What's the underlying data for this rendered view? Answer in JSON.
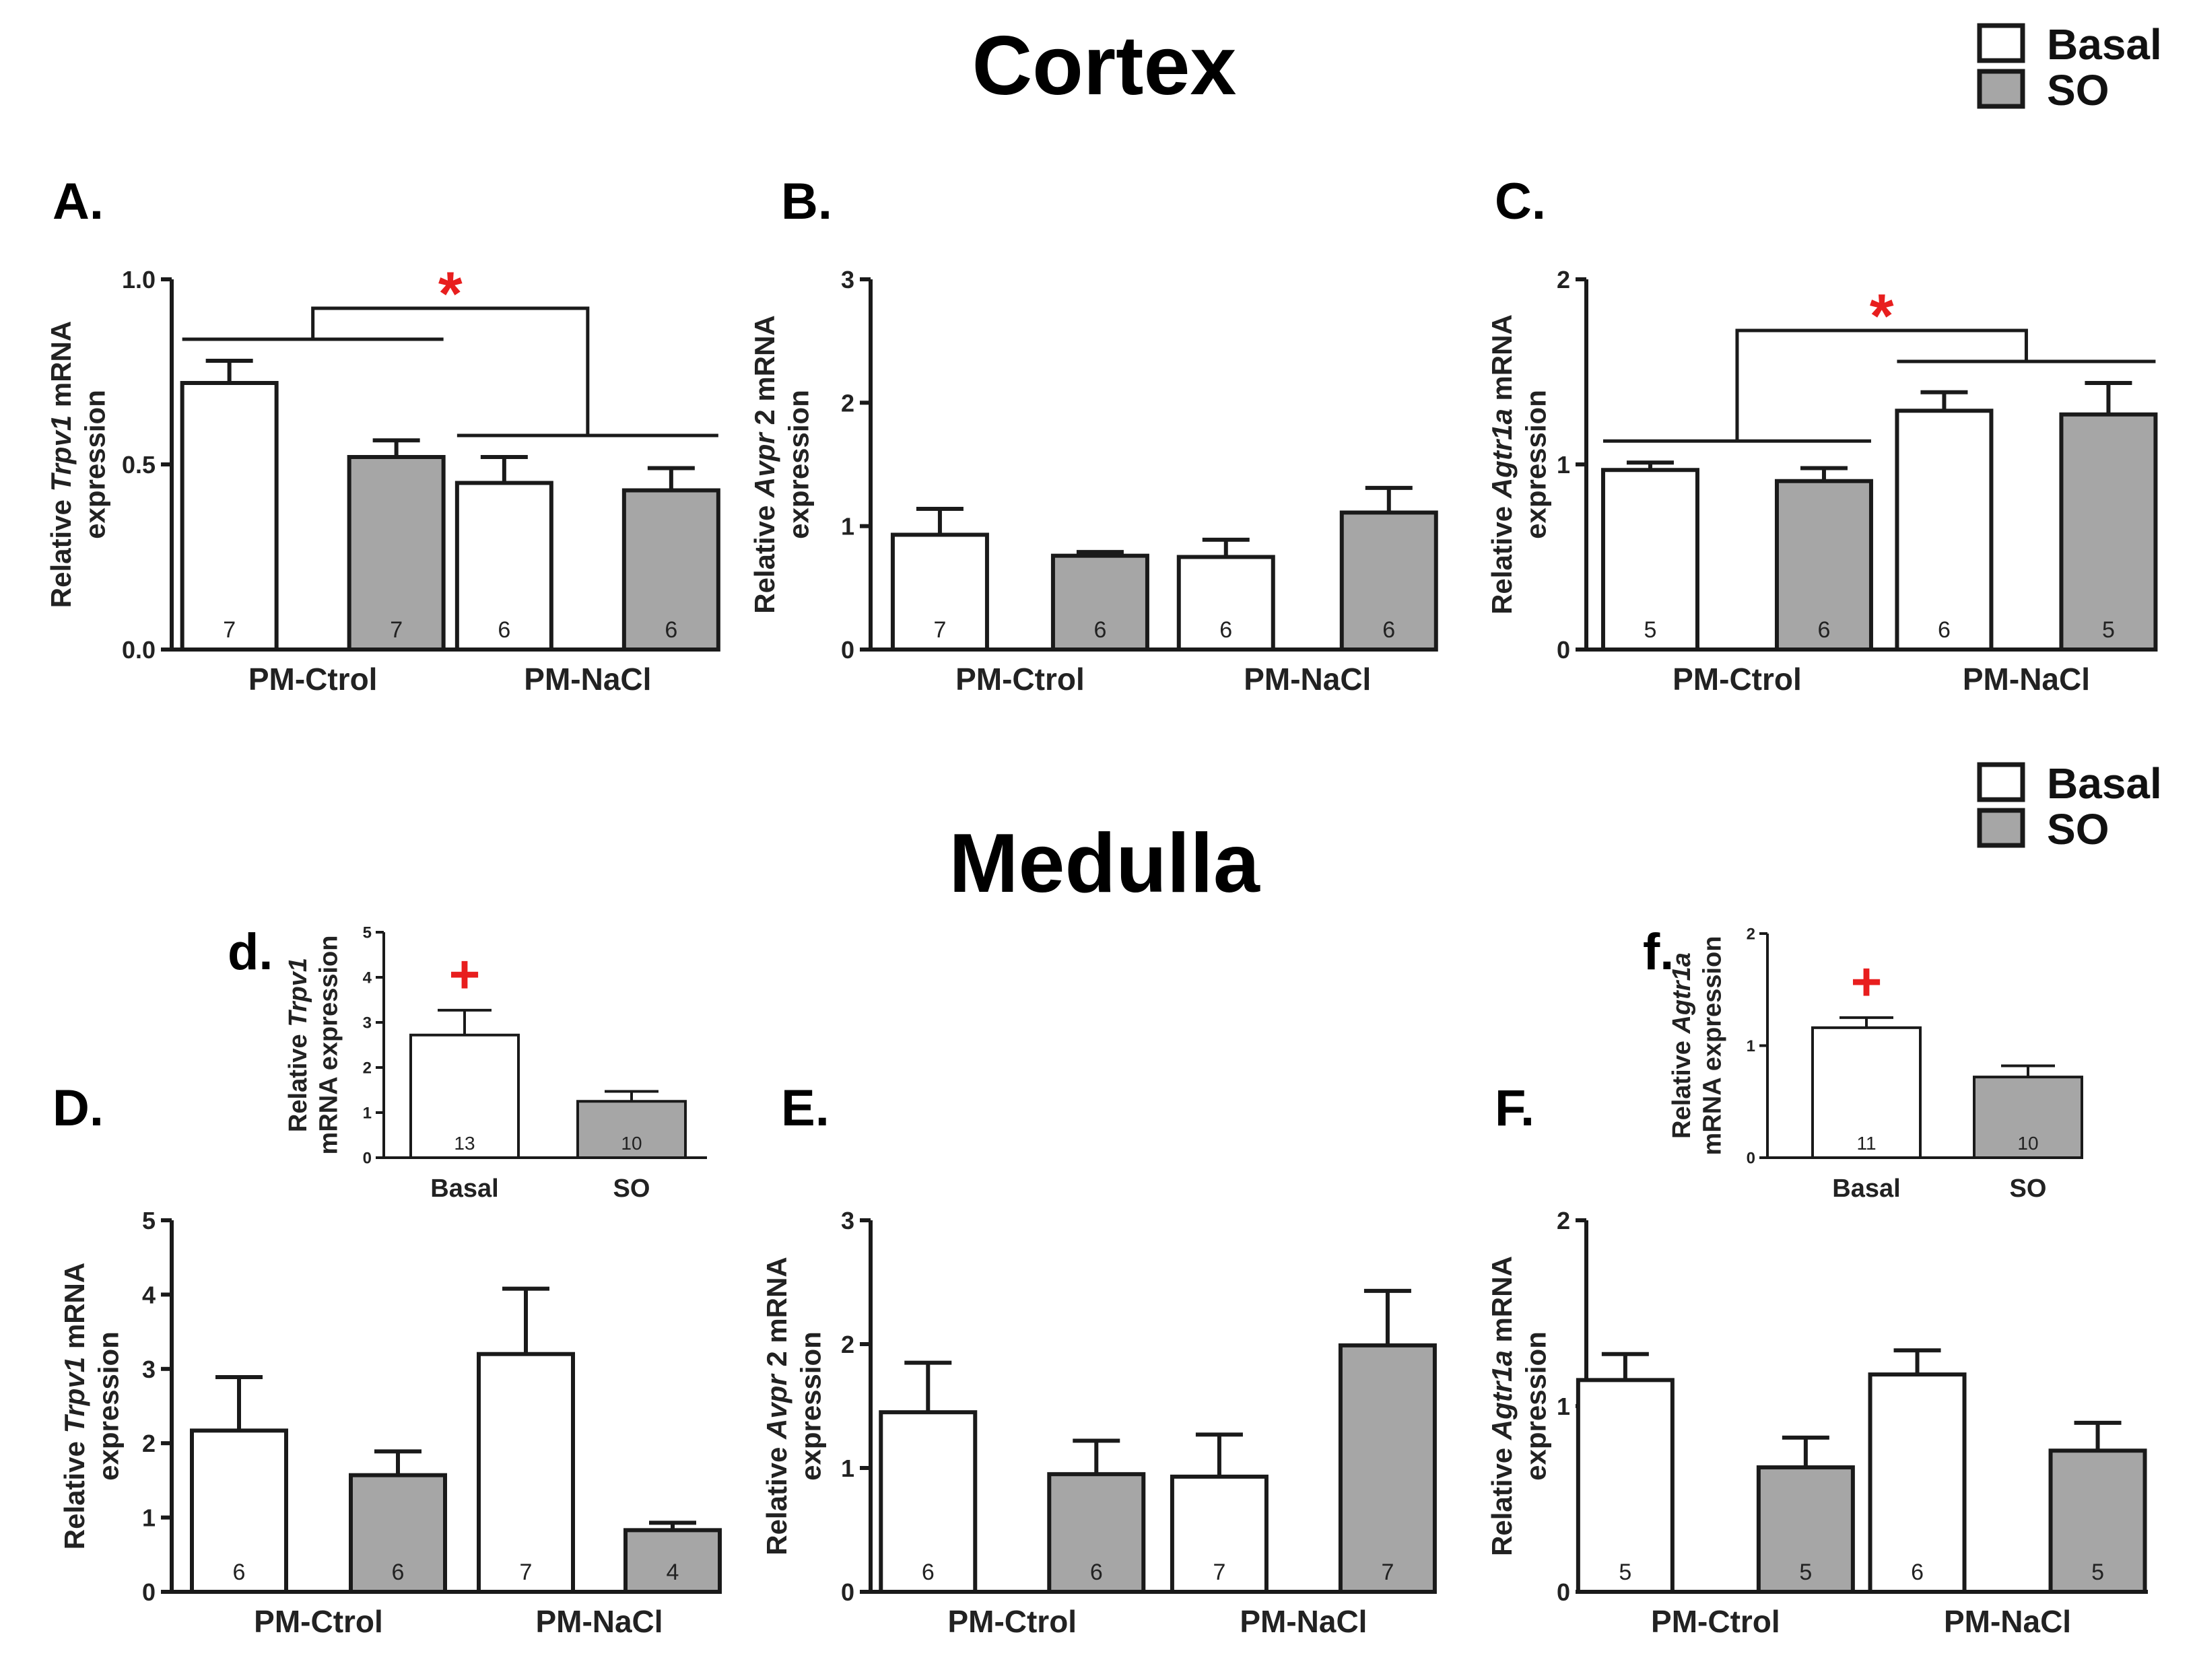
{
  "figure": {
    "cortex_title": "Cortex",
    "medulla_title": "Medulla",
    "legend": [
      {
        "label": "Basal",
        "color": "#ffffff"
      },
      {
        "label": "SO",
        "color": "#a6a6a6"
      }
    ],
    "colors": {
      "basal": "#ffffff",
      "so": "#a6a6a6",
      "sig": "#e81e1e",
      "axis": "#1a1a1a"
    }
  },
  "chart_data": [
    {
      "panel": "A.",
      "section": "Cortex",
      "type": "bar",
      "ylabel": {
        "pre": "Relative ",
        "gene": "Trpv1",
        "post": " mRNA",
        "line2": "expression"
      },
      "ylim": [
        0,
        1.0
      ],
      "yticks": [
        0.0,
        0.5,
        1.0
      ],
      "ytick_labels": [
        "0.0",
        "0.5",
        "1.0"
      ],
      "categories": [
        "PM-Ctrol",
        "PM-NaCl"
      ],
      "series": [
        {
          "name": "Basal",
          "values": [
            0.72,
            0.45
          ],
          "errors": [
            0.06,
            0.07
          ],
          "n": [
            "7",
            "6"
          ]
        },
        {
          "name": "SO",
          "values": [
            0.52,
            0.43
          ],
          "errors": [
            0.045,
            0.06
          ],
          "n": [
            "7",
            "6"
          ]
        }
      ],
      "significance": {
        "symbol": "*",
        "between": [
          "PM-Ctrol",
          "PM-NaCl"
        ]
      }
    },
    {
      "panel": "B.",
      "section": "Cortex",
      "type": "bar",
      "ylabel": {
        "pre": "Relative ",
        "gene": "Avpr",
        "post": " 2 mRNA",
        "line2": "expression"
      },
      "ylim": [
        0,
        3
      ],
      "yticks": [
        0,
        1,
        2,
        3
      ],
      "ytick_labels": [
        "0",
        "1",
        "2",
        "3"
      ],
      "categories": [
        "PM-Ctrol",
        "PM-NaCl"
      ],
      "series": [
        {
          "name": "Basal",
          "values": [
            0.93,
            0.75
          ],
          "errors": [
            0.21,
            0.14
          ],
          "n": [
            "7",
            "6"
          ]
        },
        {
          "name": "SO",
          "values": [
            0.76,
            1.11
          ],
          "errors": [
            0.03,
            0.2
          ],
          "n": [
            "6",
            "6"
          ]
        }
      ]
    },
    {
      "panel": "C.",
      "section": "Cortex",
      "type": "bar",
      "ylabel": {
        "pre": "Relative ",
        "gene": "Agtr1a",
        "post": " mRNA",
        "line2": "expression"
      },
      "ylim": [
        0,
        2
      ],
      "yticks": [
        0,
        1,
        2
      ],
      "ytick_labels": [
        "0",
        "1",
        "2"
      ],
      "categories": [
        "PM-Ctrol",
        "PM-NaCl"
      ],
      "series": [
        {
          "name": "Basal",
          "values": [
            0.97,
            1.29
          ],
          "errors": [
            0.04,
            0.1
          ],
          "n": [
            "5",
            "6"
          ]
        },
        {
          "name": "SO",
          "values": [
            0.91,
            1.27
          ],
          "errors": [
            0.07,
            0.17
          ],
          "n": [
            "6",
            "5"
          ]
        }
      ],
      "significance": {
        "symbol": "*",
        "between": [
          "PM-Ctrol",
          "PM-NaCl"
        ]
      }
    },
    {
      "panel": "d.",
      "section": "Medulla",
      "type": "bar",
      "inset": true,
      "ylabel": {
        "pre": "Relative ",
        "gene": "Trpv1",
        "post": "",
        "line2": "mRNA expression"
      },
      "ylim": [
        0,
        5
      ],
      "yticks": [
        0,
        1,
        2,
        3,
        4,
        5
      ],
      "ytick_labels": [
        "0",
        "1",
        "2",
        "3",
        "4",
        "5"
      ],
      "categories": [
        "Basal",
        "SO"
      ],
      "values": [
        2.72,
        1.25
      ],
      "errors": [
        0.55,
        0.22
      ],
      "n": [
        "13",
        "10"
      ],
      "significance": {
        "symbol": "+",
        "on": "Basal"
      }
    },
    {
      "panel": "f.",
      "section": "Medulla",
      "type": "bar",
      "inset": true,
      "ylabel": {
        "pre": "Relative ",
        "gene": "Agtr1a",
        "post": "",
        "line2": "mRNA expression"
      },
      "ylim": [
        0,
        2
      ],
      "yticks": [
        0,
        1,
        2
      ],
      "ytick_labels": [
        "0",
        "1",
        "2"
      ],
      "categories": [
        "Basal",
        "SO"
      ],
      "values": [
        1.16,
        0.72
      ],
      "errors": [
        0.09,
        0.1
      ],
      "n": [
        "11",
        "10"
      ],
      "significance": {
        "symbol": "+",
        "on": "Basal"
      }
    },
    {
      "panel": "D.",
      "section": "Medulla",
      "type": "bar",
      "ylabel": {
        "pre": "Relative ",
        "gene": "Trpv1",
        "post": " mRNA",
        "line2": "expression"
      },
      "ylim": [
        0,
        5
      ],
      "yticks": [
        0,
        1,
        2,
        3,
        4,
        5
      ],
      "ytick_labels": [
        "0",
        "1",
        "2",
        "3",
        "4",
        "5"
      ],
      "categories": [
        "PM-Ctrol",
        "PM-NaCl"
      ],
      "series": [
        {
          "name": "Basal",
          "values": [
            2.17,
            3.2
          ],
          "errors": [
            0.72,
            0.88
          ],
          "n": [
            "6",
            "7"
          ]
        },
        {
          "name": "SO",
          "values": [
            1.57,
            0.83
          ],
          "errors": [
            0.32,
            0.1
          ],
          "n": [
            "6",
            "4"
          ]
        }
      ]
    },
    {
      "panel": "E.",
      "section": "Medulla",
      "type": "bar",
      "ylabel": {
        "pre": "Relative ",
        "gene": "Avpr",
        "post": " 2 mRNA",
        "line2": "expression"
      },
      "ylim": [
        0,
        3
      ],
      "yticks": [
        0,
        1,
        2,
        3
      ],
      "ytick_labels": [
        "0",
        "1",
        "2",
        "3"
      ],
      "categories": [
        "PM-Ctrol",
        "PM-NaCl"
      ],
      "series": [
        {
          "name": "Basal",
          "values": [
            1.45,
            0.93
          ],
          "errors": [
            0.4,
            0.34
          ],
          "n": [
            "6",
            "7"
          ]
        },
        {
          "name": "SO",
          "values": [
            0.95,
            1.99
          ],
          "errors": [
            0.27,
            0.44
          ],
          "n": [
            "6",
            "7"
          ]
        }
      ]
    },
    {
      "panel": "F.",
      "section": "Medulla",
      "type": "bar",
      "ylabel": {
        "pre": "Relative ",
        "gene": "Agtr1a",
        "post": " mRNA",
        "line2": "expression"
      },
      "ylim": [
        0,
        2
      ],
      "yticks": [
        0,
        1,
        2
      ],
      "ytick_labels": [
        "0",
        "1",
        "2"
      ],
      "categories": [
        "PM-Ctrol",
        "PM-NaCl"
      ],
      "series": [
        {
          "name": "Basal",
          "values": [
            1.14,
            1.17
          ],
          "errors": [
            0.14,
            0.13
          ],
          "n": [
            "5",
            "6"
          ]
        },
        {
          "name": "SO",
          "values": [
            0.67,
            0.76
          ],
          "errors": [
            0.16,
            0.15
          ],
          "n": [
            "5",
            "5"
          ]
        }
      ]
    }
  ]
}
